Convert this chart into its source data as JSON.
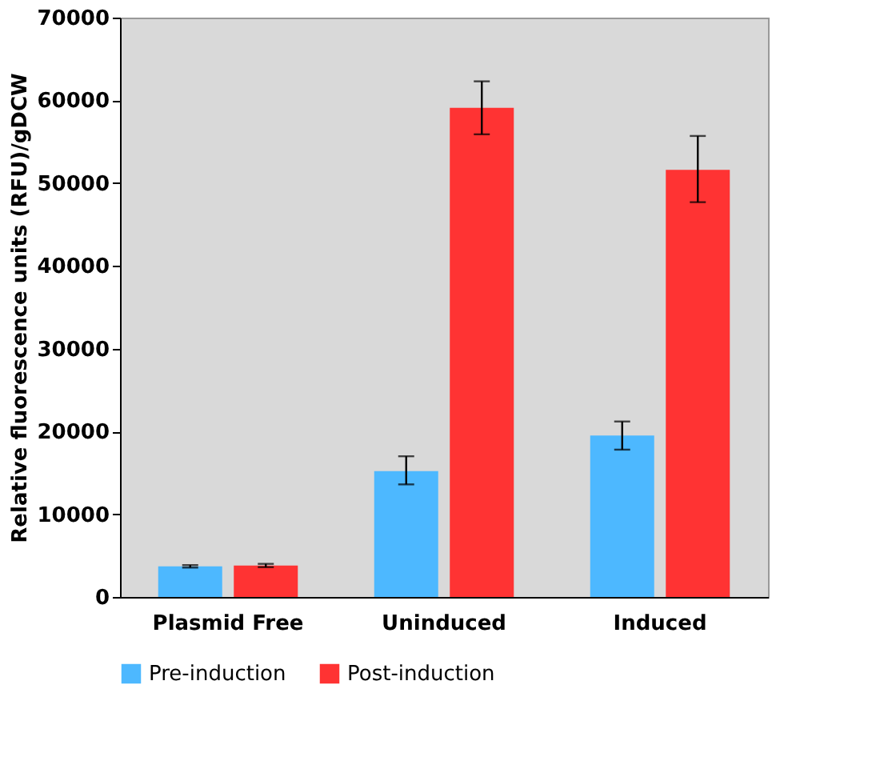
{
  "chart_data": {
    "type": "bar",
    "ylabel": "Relative fluorescence units (RFU)/gDCW",
    "categories": [
      "Plasmid Free",
      "Uninduced",
      "Induced"
    ],
    "series": [
      {
        "name": "Pre-induction",
        "color": "#4db8ff",
        "values": [
          3700,
          15200,
          19500
        ],
        "errors": [
          [
            3550,
            3850
          ],
          [
            13600,
            17000
          ],
          [
            17800,
            21200
          ]
        ]
      },
      {
        "name": "Post-induction",
        "color": "#ff3333",
        "values": [
          3800,
          59100,
          51600
        ],
        "errors": [
          [
            3600,
            4000
          ],
          [
            55900,
            62300
          ],
          [
            47700,
            55700
          ]
        ]
      }
    ],
    "ylim": [
      0,
      70000
    ],
    "yticks": [
      0,
      10000,
      20000,
      30000,
      40000,
      50000,
      60000,
      70000
    ],
    "grid": false,
    "legend": "bottom"
  }
}
